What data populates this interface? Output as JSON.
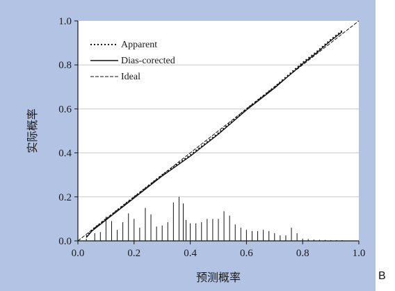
{
  "panel_letter": "B",
  "colors": {
    "panel_bg": "#b3c3e4",
    "plot_bg": "#ffffff",
    "grid": "#c8c8c8",
    "ink": "#111111"
  },
  "chart_data": {
    "type": "line",
    "xlabel": "预测概率",
    "ylabel": "实际概率",
    "xlim": [
      0,
      1
    ],
    "ylim": [
      0,
      1
    ],
    "x_ticks": [
      "0.0",
      "0.2",
      "0.4",
      "0.6",
      "0.8",
      "1.0"
    ],
    "y_ticks": [
      "0.0",
      "0.2",
      "0.4",
      "0.6",
      "0.8",
      "1.0"
    ],
    "grid": "horizontal",
    "legend_position": "top-left",
    "series": [
      {
        "name": "Apparent",
        "style": "dotted",
        "x": [
          0.03,
          0.05,
          0.1,
          0.15,
          0.2,
          0.25,
          0.3,
          0.35,
          0.4,
          0.45,
          0.5,
          0.55,
          0.6,
          0.65,
          0.7,
          0.75,
          0.8,
          0.85,
          0.9,
          0.94
        ],
        "y": [
          0.02,
          0.05,
          0.1,
          0.15,
          0.2,
          0.25,
          0.3,
          0.345,
          0.39,
          0.44,
          0.49,
          0.545,
          0.6,
          0.65,
          0.7,
          0.755,
          0.81,
          0.86,
          0.915,
          0.955
        ]
      },
      {
        "name": "Dias-corected",
        "style": "solid",
        "x": [
          0.03,
          0.05,
          0.1,
          0.15,
          0.2,
          0.25,
          0.3,
          0.35,
          0.4,
          0.45,
          0.5,
          0.55,
          0.6,
          0.65,
          0.7,
          0.75,
          0.8,
          0.85,
          0.9,
          0.94
        ],
        "y": [
          0.015,
          0.045,
          0.095,
          0.145,
          0.195,
          0.245,
          0.295,
          0.34,
          0.385,
          0.435,
          0.485,
          0.54,
          0.595,
          0.645,
          0.695,
          0.75,
          0.805,
          0.855,
          0.91,
          0.95
        ]
      },
      {
        "name": "Ideal",
        "style": "dashed",
        "x": [
          0,
          1
        ],
        "y": [
          0,
          1
        ]
      }
    ],
    "histogram": {
      "x": [
        0.03,
        0.06,
        0.08,
        0.1,
        0.12,
        0.14,
        0.16,
        0.18,
        0.2,
        0.22,
        0.24,
        0.26,
        0.28,
        0.3,
        0.32,
        0.34,
        0.36,
        0.375,
        0.385,
        0.4,
        0.42,
        0.44,
        0.46,
        0.48,
        0.5,
        0.52,
        0.54,
        0.56,
        0.58,
        0.6,
        0.62,
        0.64,
        0.66,
        0.68,
        0.7,
        0.72,
        0.74,
        0.76,
        0.78,
        0.8,
        0.82,
        0.84,
        0.86,
        0.88,
        0.9,
        0.92,
        0.94
      ],
      "heights": [
        0.01,
        0.035,
        0.04,
        0.11,
        0.09,
        0.05,
        0.085,
        0.125,
        0.1,
        0.06,
        0.15,
        0.12,
        0.065,
        0.07,
        0.085,
        0.175,
        0.2,
        0.17,
        0.095,
        0.08,
        0.08,
        0.085,
        0.1,
        0.1,
        0.1,
        0.135,
        0.115,
        0.075,
        0.06,
        0.05,
        0.045,
        0.045,
        0.05,
        0.045,
        0.035,
        0.025,
        0.025,
        0.06,
        0.035,
        0.01,
        0.008,
        0.006,
        0.005,
        0.004,
        0.003,
        0.003,
        0.003
      ]
    }
  }
}
